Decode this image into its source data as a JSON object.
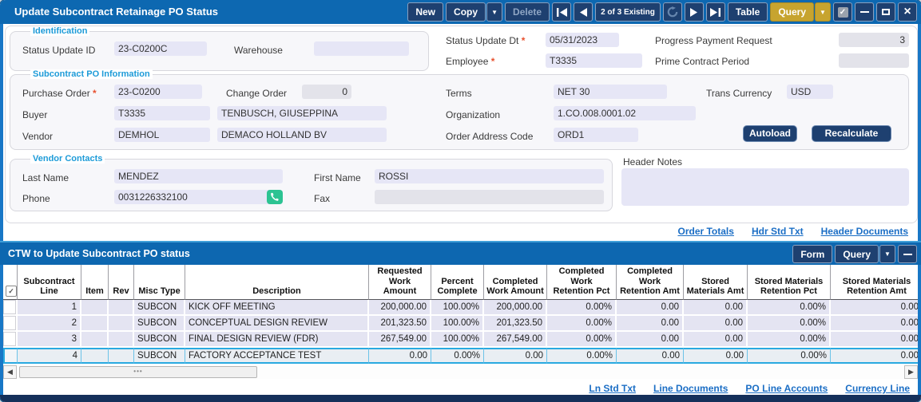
{
  "colors": {
    "titlebar_blue": "#0d68b1",
    "window_border_blue": "#1877c6",
    "button_navy": "#1e4070",
    "query_gold": "#c7a42f",
    "section_label_cyan": "#1d9bd8",
    "link_blue": "#1b6ec5",
    "field_lavender": "#e6e6f6",
    "selected_row_cyan": "#29a9e0",
    "phone_green": "#2cc392",
    "required_red": "#e8512f"
  },
  "window": {
    "title": "Update Subcontract Retainage PO Status",
    "toolbar": {
      "new": "New",
      "copy": "Copy",
      "delete": "Delete",
      "record_counter": "2 of 3 Existing",
      "table": "Table",
      "query": "Query"
    }
  },
  "identification": {
    "section_label": "Identification",
    "status_update_id": {
      "label": "Status Update ID",
      "value": "23-C0200C"
    },
    "warehouse": {
      "label": "Warehouse",
      "value": ""
    },
    "status_update_dt": {
      "label": "Status Update Dt",
      "value": "05/31/2023"
    },
    "employee": {
      "label": "Employee",
      "value": "T3335"
    },
    "progress_payment_request": {
      "label": "Progress Payment Request",
      "value": "3"
    },
    "prime_contract_period": {
      "label": "Prime Contract Period",
      "value": ""
    }
  },
  "po_information": {
    "section_label": "Subcontract PO Information",
    "purchase_order": {
      "label": "Purchase Order",
      "value": "23-C0200"
    },
    "change_order": {
      "label": "Change Order",
      "value": "0"
    },
    "terms": {
      "label": "Terms",
      "value": "NET 30"
    },
    "trans_currency": {
      "label": "Trans Currency",
      "value": "USD"
    },
    "buyer": {
      "label": "Buyer",
      "value": "T3335",
      "name": "TENBUSCH, GIUSEPPINA"
    },
    "organization": {
      "label": "Organization",
      "value": "1.CO.008.0001.02"
    },
    "vendor": {
      "label": "Vendor",
      "value": "DEMHOL",
      "name": "DEMACO HOLLAND BV"
    },
    "order_address_code": {
      "label": "Order Address Code",
      "value": "ORD1"
    },
    "autoload_button": "Autoload",
    "recalculate_button": "Recalculate"
  },
  "vendor_contacts": {
    "section_label": "Vendor Contacts",
    "last_name": {
      "label": "Last Name",
      "value": "MENDEZ"
    },
    "first_name": {
      "label": "First Name",
      "value": "ROSSI"
    },
    "phone": {
      "label": "Phone",
      "value": "0031226332100"
    },
    "fax": {
      "label": "Fax",
      "value": ""
    }
  },
  "header_notes": {
    "label": "Header Notes",
    "value": ""
  },
  "header_links": [
    "Order Totals",
    "Hdr Std Txt",
    "Header Documents"
  ],
  "line_table": {
    "title": "CTW to Update Subcontract PO status",
    "form_button": "Form",
    "query_button": "Query",
    "columns": [
      "Subcontract Line",
      "Item",
      "Rev",
      "Misc Type",
      "Description",
      "Requested Work Amount",
      "Percent Complete",
      "Completed Work Amount",
      "Completed Work Retention Pct",
      "Completed Work Retention Amt",
      "Stored Materials Amt",
      "Stored Materials Retention Pct",
      "Stored Materials Retention Amt"
    ],
    "rows": [
      [
        "1",
        "",
        "",
        "SUBCON",
        "KICK OFF MEETING",
        "200,000.00",
        "100.00%",
        "200,000.00",
        "0.00%",
        "0.00",
        "0.00",
        "0.00%",
        "0.00"
      ],
      [
        "2",
        "",
        "",
        "SUBCON",
        "CONCEPTUAL DESIGN REVIEW",
        "201,323.50",
        "100.00%",
        "201,323.50",
        "0.00%",
        "0.00",
        "0.00",
        "0.00%",
        "0.00"
      ],
      [
        "3",
        "",
        "",
        "SUBCON",
        "FINAL DESIGN REVIEW (FDR)",
        "267,549.00",
        "100.00%",
        "267,549.00",
        "0.00%",
        "0.00",
        "0.00",
        "0.00%",
        "0.00"
      ],
      [
        "4",
        "",
        "",
        "SUBCON",
        "FACTORY ACCEPTANCE TEST",
        "0.00",
        "0.00%",
        "0.00",
        "0.00%",
        "0.00",
        "0.00",
        "0.00%",
        "0.00"
      ]
    ],
    "selected_row_index": 3
  },
  "line_links": [
    "Ln Std Txt",
    "Line Documents",
    "PO Line Accounts",
    "Currency Line"
  ]
}
